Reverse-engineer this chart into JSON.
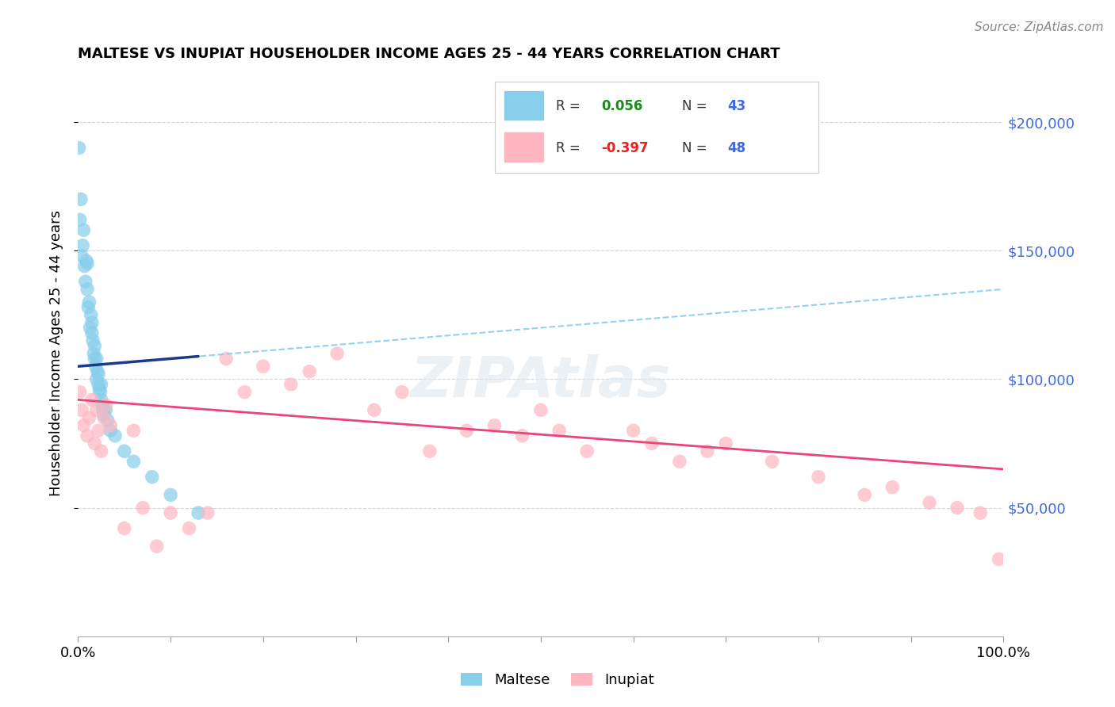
{
  "title": "MALTESE VS INUPIAT HOUSEHOLDER INCOME AGES 25 - 44 YEARS CORRELATION CHART",
  "source": "Source: ZipAtlas.com",
  "ylabel": "Householder Income Ages 25 - 44 years",
  "maltese_color": "#87ceeb",
  "maltese_line_color": "#1a3a8a",
  "maltese_dash_color": "#87ceeb",
  "inupiat_color": "#ffb6c1",
  "inupiat_line_color": "#e8457a",
  "background_color": "#ffffff",
  "grid_color": "#cccccc",
  "ytick_labels": [
    "$50,000",
    "$100,000",
    "$150,000",
    "$200,000"
  ],
  "ytick_values": [
    50000,
    100000,
    150000,
    200000
  ],
  "ylim": [
    0,
    220000
  ],
  "xlim": [
    0.0,
    1.0
  ],
  "R_maltese": 0.056,
  "N_maltese": 43,
  "R_inupiat": -0.397,
  "N_inupiat": 48,
  "maltese_x": [
    0.001,
    0.002,
    0.003,
    0.004,
    0.005,
    0.006,
    0.007,
    0.008,
    0.009,
    0.01,
    0.01,
    0.011,
    0.012,
    0.013,
    0.014,
    0.015,
    0.015,
    0.016,
    0.017,
    0.018,
    0.018,
    0.019,
    0.02,
    0.02,
    0.021,
    0.022,
    0.022,
    0.023,
    0.024,
    0.025,
    0.025,
    0.026,
    0.027,
    0.028,
    0.03,
    0.032,
    0.035,
    0.04,
    0.05,
    0.06,
    0.08,
    0.1,
    0.13
  ],
  "maltese_y": [
    190000,
    162000,
    170000,
    148000,
    152000,
    158000,
    144000,
    138000,
    146000,
    135000,
    145000,
    128000,
    130000,
    120000,
    125000,
    118000,
    122000,
    115000,
    110000,
    108000,
    113000,
    105000,
    100000,
    108000,
    103000,
    98000,
    102000,
    96000,
    95000,
    92000,
    98000,
    90000,
    88000,
    86000,
    88000,
    84000,
    80000,
    78000,
    72000,
    68000,
    62000,
    55000,
    48000
  ],
  "inupiat_x": [
    0.002,
    0.004,
    0.006,
    0.01,
    0.012,
    0.015,
    0.018,
    0.02,
    0.022,
    0.025,
    0.028,
    0.03,
    0.035,
    0.05,
    0.06,
    0.07,
    0.085,
    0.1,
    0.12,
    0.14,
    0.16,
    0.18,
    0.2,
    0.23,
    0.25,
    0.28,
    0.32,
    0.35,
    0.38,
    0.42,
    0.45,
    0.48,
    0.5,
    0.52,
    0.55,
    0.6,
    0.62,
    0.65,
    0.68,
    0.7,
    0.75,
    0.8,
    0.85,
    0.88,
    0.92,
    0.95,
    0.975,
    0.995
  ],
  "inupiat_y": [
    95000,
    88000,
    82000,
    78000,
    85000,
    92000,
    75000,
    88000,
    80000,
    72000,
    85000,
    90000,
    82000,
    42000,
    80000,
    50000,
    35000,
    48000,
    42000,
    48000,
    108000,
    95000,
    105000,
    98000,
    103000,
    110000,
    88000,
    95000,
    72000,
    80000,
    82000,
    78000,
    88000,
    80000,
    72000,
    80000,
    75000,
    68000,
    72000,
    75000,
    68000,
    62000,
    55000,
    58000,
    52000,
    50000,
    48000,
    30000
  ]
}
